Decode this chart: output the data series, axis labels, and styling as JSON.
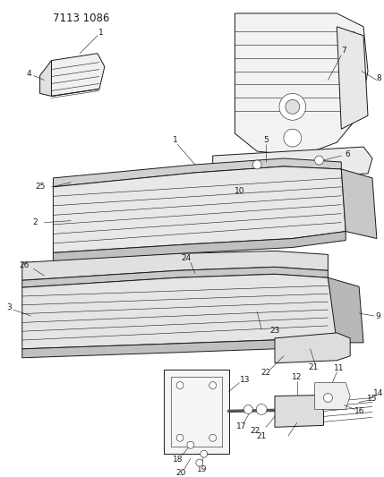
{
  "title": "7113 1086",
  "bg": "#ffffff",
  "lc": "#1a1a1a",
  "fw": 4.29,
  "fh": 5.33,
  "dpi": 100,
  "lfs": 6.5,
  "tfs": 8.5
}
